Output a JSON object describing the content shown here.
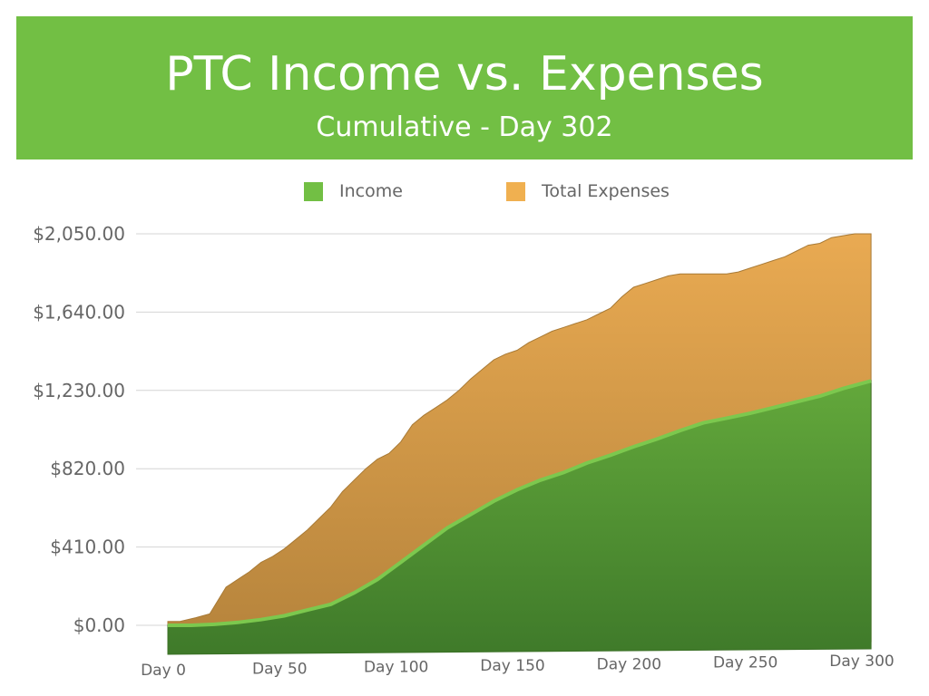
{
  "chart_data": {
    "type": "area",
    "title": "PTC Income vs. Expenses",
    "subtitle": "Cumulative - Day 302",
    "xlabel": "",
    "ylabel": "",
    "xlim": [
      0,
      302
    ],
    "ylim": [
      0,
      2050
    ],
    "yticks": [
      0,
      410,
      820,
      1230,
      1640,
      2050
    ],
    "ytick_labels": [
      "$0.00",
      "$410.00",
      "$820.00",
      "$1,230.00",
      "$1,640.00",
      "$2,050.00"
    ],
    "xticks": [
      0,
      50,
      100,
      150,
      200,
      250,
      300
    ],
    "xtick_labels": [
      "Day 0",
      "Day 50",
      "Day 100",
      "Day 150",
      "Day 200",
      "Day 250",
      "Day 300"
    ],
    "grid": true,
    "legend_position": "top-center",
    "series": [
      {
        "name": "Income",
        "color": "#72bf44",
        "x": [
          0,
          10,
          20,
          30,
          40,
          50,
          60,
          70,
          80,
          90,
          100,
          110,
          120,
          130,
          140,
          150,
          160,
          170,
          180,
          190,
          200,
          210,
          220,
          230,
          240,
          250,
          260,
          270,
          280,
          290,
          302
        ],
        "values": [
          0,
          0,
          5,
          15,
          30,
          50,
          80,
          110,
          170,
          240,
          330,
          420,
          510,
          580,
          650,
          710,
          760,
          800,
          850,
          890,
          935,
          975,
          1020,
          1060,
          1085,
          1110,
          1140,
          1170,
          1200,
          1240,
          1280
        ]
      },
      {
        "name": "Total Expenses",
        "color": "#f0b050",
        "x": [
          0,
          5,
          12,
          18,
          25,
          30,
          35,
          40,
          45,
          50,
          55,
          60,
          65,
          70,
          75,
          80,
          85,
          90,
          95,
          100,
          105,
          110,
          115,
          120,
          125,
          130,
          135,
          140,
          145,
          150,
          155,
          160,
          165,
          170,
          175,
          180,
          185,
          190,
          195,
          200,
          205,
          210,
          215,
          220,
          225,
          230,
          235,
          240,
          245,
          250,
          255,
          260,
          265,
          270,
          275,
          280,
          285,
          290,
          295,
          302
        ],
        "values": [
          20,
          20,
          40,
          60,
          200,
          240,
          280,
          330,
          360,
          400,
          450,
          500,
          560,
          620,
          700,
          760,
          820,
          870,
          900,
          960,
          1050,
          1100,
          1140,
          1180,
          1230,
          1290,
          1340,
          1390,
          1420,
          1440,
          1480,
          1510,
          1540,
          1560,
          1580,
          1600,
          1630,
          1660,
          1720,
          1770,
          1790,
          1810,
          1830,
          1840,
          1840,
          1840,
          1840,
          1840,
          1850,
          1870,
          1890,
          1910,
          1930,
          1960,
          1990,
          2000,
          2030,
          2040,
          2050,
          2050
        ]
      }
    ]
  }
}
